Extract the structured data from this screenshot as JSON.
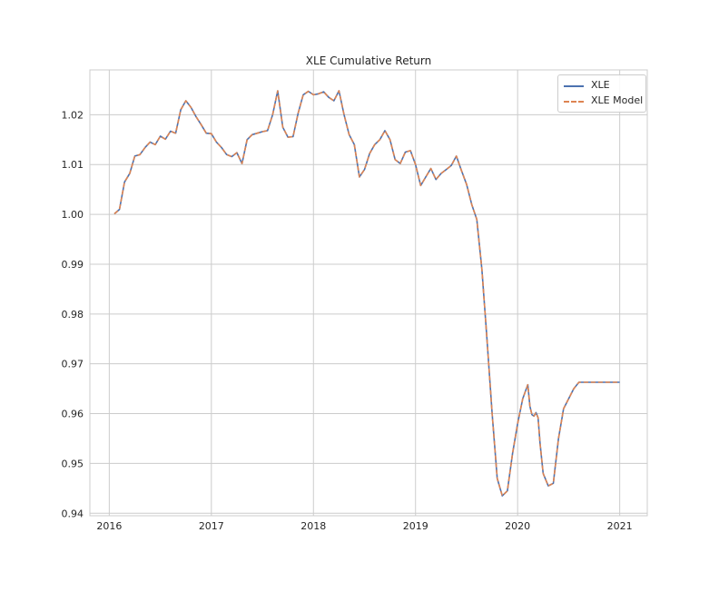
{
  "chart_data": {
    "type": "line",
    "title": "XLE Cumulative Return",
    "xlabel": "",
    "ylabel": "",
    "x_tick_labels": [
      "2016",
      "2017",
      "2018",
      "2019",
      "2020",
      "2021"
    ],
    "y_tick_labels": [
      "0.94",
      "0.95",
      "0.96",
      "0.97",
      "0.98",
      "0.99",
      "1.00",
      "1.01",
      "1.02"
    ],
    "xlim": [
      2015.81,
      2021.27
    ],
    "ylim": [
      0.9395,
      1.029
    ],
    "grid": true,
    "legend_position": "top-right",
    "x": [
      2016.05,
      2016.1,
      2016.15,
      2016.2,
      2016.25,
      2016.3,
      2016.35,
      2016.4,
      2016.45,
      2016.5,
      2016.55,
      2016.6,
      2016.65,
      2016.7,
      2016.75,
      2016.8,
      2016.85,
      2016.9,
      2016.95,
      2017.0,
      2017.05,
      2017.1,
      2017.15,
      2017.2,
      2017.25,
      2017.3,
      2017.35,
      2017.4,
      2017.45,
      2017.5,
      2017.55,
      2017.6,
      2017.65,
      2017.7,
      2017.75,
      2017.8,
      2017.85,
      2017.9,
      2017.95,
      2018.0,
      2018.05,
      2018.1,
      2018.15,
      2018.2,
      2018.25,
      2018.3,
      2018.35,
      2018.4,
      2018.45,
      2018.5,
      2018.55,
      2018.6,
      2018.65,
      2018.7,
      2018.75,
      2018.8,
      2018.85,
      2018.9,
      2018.95,
      2019.0,
      2019.05,
      2019.1,
      2019.15,
      2019.2,
      2019.25,
      2019.3,
      2019.35,
      2019.4,
      2019.45,
      2019.5,
      2019.55,
      2019.6,
      2019.65,
      2019.7,
      2019.75,
      2019.8,
      2019.85,
      2019.9,
      2019.95,
      2020.0,
      2020.05,
      2020.1,
      2020.12,
      2020.14,
      2020.16,
      2020.18,
      2020.2,
      2020.22,
      2020.25,
      2020.3,
      2020.35,
      2020.4,
      2020.45,
      2020.5,
      2020.55,
      2020.6,
      2020.65,
      2020.7,
      2020.75,
      2020.8,
      2020.85,
      2020.9,
      2020.95,
      2021.0
    ],
    "series": [
      {
        "name": "XLE",
        "color": "#4c72b0",
        "style": "solid",
        "values": [
          1.0001,
          1.001,
          1.0065,
          1.0082,
          1.0117,
          1.012,
          1.0134,
          1.0145,
          1.014,
          1.0157,
          1.0151,
          1.0167,
          1.0163,
          1.021,
          1.0228,
          1.0215,
          1.0196,
          1.018,
          1.0163,
          1.0162,
          1.0145,
          1.0134,
          1.012,
          1.0116,
          1.0124,
          1.0102,
          1.015,
          1.016,
          1.0163,
          1.0166,
          1.0168,
          1.02,
          1.0248,
          1.0175,
          1.0155,
          1.0156,
          1.0203,
          1.024,
          1.0247,
          1.024,
          1.0242,
          1.0246,
          1.0235,
          1.0228,
          1.0248,
          1.02,
          1.016,
          1.014,
          1.0075,
          1.009,
          1.0122,
          1.014,
          1.015,
          1.0168,
          1.015,
          1.011,
          1.0102,
          1.0125,
          1.0128,
          1.01,
          1.0058,
          1.0075,
          1.0092,
          1.007,
          1.0082,
          1.009,
          1.0098,
          1.0117,
          1.0088,
          1.006,
          1.002,
          0.999,
          0.989,
          0.975,
          0.96,
          0.947,
          0.9435,
          0.9445,
          0.952,
          0.958,
          0.963,
          0.9658,
          0.9615,
          0.9598,
          0.9595,
          0.9602,
          0.9592,
          0.954,
          0.948,
          0.9455,
          0.946,
          0.955,
          0.961,
          0.963,
          0.965,
          0.9663,
          0.9663,
          0.9663,
          0.9663,
          0.9663,
          0.9663,
          0.9663,
          0.9663,
          0.9663
        ]
      },
      {
        "name": "XLE Model",
        "color": "#dd8452",
        "style": "dashed",
        "values": [
          1.0001,
          1.001,
          1.0065,
          1.0082,
          1.0117,
          1.012,
          1.0134,
          1.0145,
          1.014,
          1.0157,
          1.0151,
          1.0167,
          1.0163,
          1.021,
          1.0228,
          1.0215,
          1.0196,
          1.018,
          1.0163,
          1.0162,
          1.0145,
          1.0134,
          1.012,
          1.0116,
          1.0124,
          1.0102,
          1.015,
          1.016,
          1.0163,
          1.0166,
          1.0168,
          1.02,
          1.0248,
          1.0175,
          1.0155,
          1.0156,
          1.0203,
          1.024,
          1.0247,
          1.024,
          1.0242,
          1.0246,
          1.0235,
          1.0228,
          1.0248,
          1.02,
          1.016,
          1.014,
          1.0075,
          1.009,
          1.0122,
          1.014,
          1.015,
          1.0168,
          1.015,
          1.011,
          1.0102,
          1.0125,
          1.0128,
          1.01,
          1.0058,
          1.0075,
          1.0092,
          1.007,
          1.0082,
          1.009,
          1.0098,
          1.0117,
          1.0088,
          1.006,
          1.002,
          0.999,
          0.989,
          0.975,
          0.96,
          0.947,
          0.9435,
          0.9445,
          0.952,
          0.958,
          0.963,
          0.9658,
          0.9615,
          0.9598,
          0.9595,
          0.9602,
          0.9592,
          0.954,
          0.948,
          0.9455,
          0.946,
          0.955,
          0.961,
          0.963,
          0.965,
          0.9663,
          0.9663,
          0.9663,
          0.9663,
          0.9663,
          0.9663,
          0.9663,
          0.9663,
          0.9663
        ]
      }
    ]
  }
}
